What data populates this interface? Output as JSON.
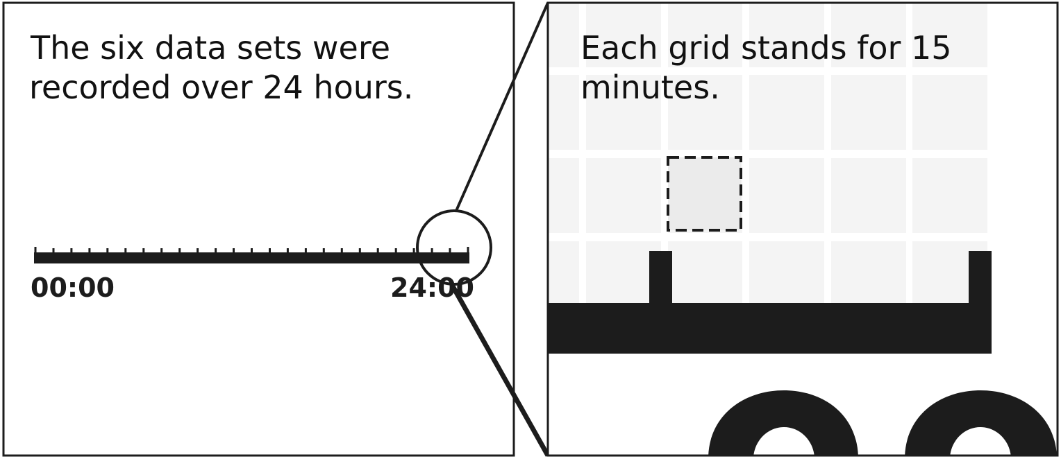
{
  "left_panel": {
    "caption_line1": "The six data sets were",
    "caption_line2": "recorded over 24 hours.",
    "timeline": {
      "start_label": "00:00",
      "end_label": "24:00",
      "start_hour": 0,
      "end_hour": 24,
      "tick_count": 25
    }
  },
  "right_panel": {
    "caption_line1": "Each grid stands for 15",
    "caption_line2": "minutes.",
    "grid_minutes_per_cell": 15
  },
  "colors": {
    "ink": "#1c1c1c",
    "grid_cell": "#f4f4f4",
    "highlight_cell": "#ebebeb",
    "background": "#ffffff"
  }
}
